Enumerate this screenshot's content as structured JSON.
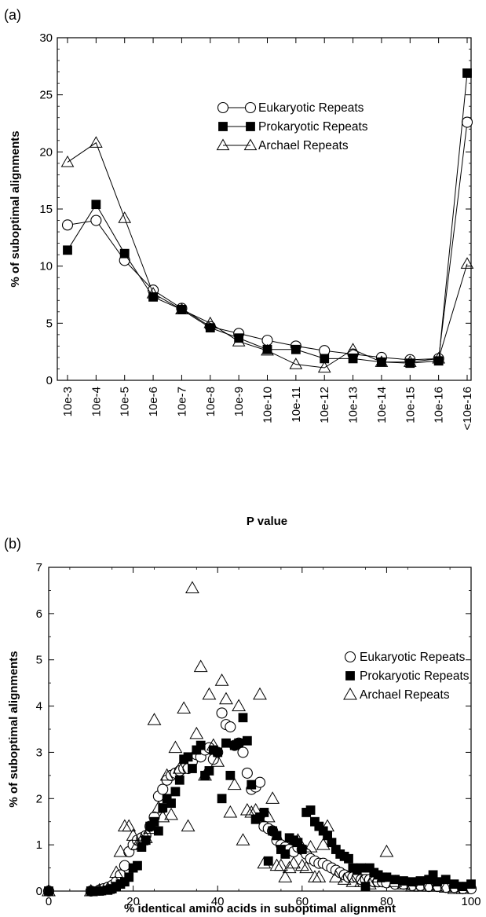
{
  "chart_data": [
    {
      "panel_label": "(a)",
      "type": "line",
      "xlabel": "P value",
      "ylabel": "% of suboptimal alignments",
      "ylim": [
        0,
        30
      ],
      "yticks": [
        0,
        5,
        10,
        15,
        20,
        25,
        30
      ],
      "categories": [
        "10e-3",
        "10e-4",
        "10e-5",
        "10e-6",
        "10e-7",
        "10e-8",
        "10e-9",
        "10e-10",
        "10e-11",
        "10e-12",
        "10e-13",
        "10e-14",
        "10e-15",
        "10e-16",
        "<10e-16"
      ],
      "legend_position": "top-right",
      "series": [
        {
          "name": "Eukaryotic Repeats",
          "marker": "open-circle",
          "color": "#000000",
          "values": [
            13.6,
            14.0,
            10.5,
            7.9,
            6.3,
            4.7,
            4.1,
            3.5,
            3.0,
            2.6,
            2.3,
            2.0,
            1.8,
            1.9,
            22.6
          ]
        },
        {
          "name": "Prokaryotic Repeats",
          "marker": "filled-square",
          "color": "#000000",
          "values": [
            11.4,
            15.4,
            11.1,
            7.3,
            6.2,
            4.6,
            3.7,
            2.7,
            2.7,
            1.9,
            1.9,
            1.6,
            1.5,
            1.7,
            26.9
          ]
        },
        {
          "name": "Archael Repeats",
          "marker": "open-triangle",
          "color": "#000000",
          "values": [
            19.1,
            20.8,
            14.2,
            7.6,
            6.2,
            5.0,
            3.4,
            2.6,
            1.4,
            1.1,
            2.7,
            1.6,
            1.6,
            1.9,
            10.2
          ]
        }
      ]
    },
    {
      "panel_label": "(b)",
      "type": "scatter",
      "xlabel": "% identical amino acids in suboptimal alignment",
      "ylabel": "% of suboptimal alignments",
      "xlim": [
        0,
        100
      ],
      "ylim": [
        0,
        7
      ],
      "xticks": [
        0,
        20,
        40,
        60,
        80,
        100
      ],
      "yticks": [
        0,
        1,
        2,
        3,
        4,
        5,
        6,
        7
      ],
      "legend_position": "top-right",
      "series": [
        {
          "name": "Eukaryotic Repeats",
          "marker": "open-circle",
          "color": "#000000",
          "points": [
            [
              0,
              0
            ],
            [
              10,
              0
            ],
            [
              12,
              0.02
            ],
            [
              13,
              0.05
            ],
            [
              14,
              0.08
            ],
            [
              15,
              0.12
            ],
            [
              16,
              0.2
            ],
            [
              17,
              0.35
            ],
            [
              18,
              0.55
            ],
            [
              19,
              0.85
            ],
            [
              20,
              1.0
            ],
            [
              21,
              1.1
            ],
            [
              22,
              1.15
            ],
            [
              23,
              1.2
            ],
            [
              24,
              1.4
            ],
            [
              25,
              1.6
            ],
            [
              26,
              2.05
            ],
            [
              27,
              2.2
            ],
            [
              28,
              2.4
            ],
            [
              29,
              2.5
            ],
            [
              30,
              2.55
            ],
            [
              31,
              2.6
            ],
            [
              32,
              2.65
            ],
            [
              33,
              2.65
            ],
            [
              34,
              2.8
            ],
            [
              35,
              2.95
            ],
            [
              36,
              2.9
            ],
            [
              37,
              3.05
            ],
            [
              38,
              3.1
            ],
            [
              39,
              2.85
            ],
            [
              40,
              3.0
            ],
            [
              41,
              3.85
            ],
            [
              42,
              3.6
            ],
            [
              43,
              3.55
            ],
            [
              44,
              3.15
            ],
            [
              45,
              3.2
            ],
            [
              46,
              3.0
            ],
            [
              47,
              2.55
            ],
            [
              48,
              2.2
            ],
            [
              49,
              2.25
            ],
            [
              50,
              2.35
            ],
            [
              51,
              1.4
            ],
            [
              52,
              1.35
            ],
            [
              53,
              1.3
            ],
            [
              54,
              1.1
            ],
            [
              55,
              1.0
            ],
            [
              56,
              0.95
            ],
            [
              57,
              0.9
            ],
            [
              58,
              0.85
            ],
            [
              59,
              0.95
            ],
            [
              60,
              0.9
            ],
            [
              61,
              0.8
            ],
            [
              62,
              0.7
            ],
            [
              63,
              0.65
            ],
            [
              64,
              0.6
            ],
            [
              65,
              0.6
            ],
            [
              66,
              0.55
            ],
            [
              67,
              0.5
            ],
            [
              68,
              0.45
            ],
            [
              69,
              0.4
            ],
            [
              70,
              0.35
            ],
            [
              71,
              0.3
            ],
            [
              72,
              0.3
            ],
            [
              73,
              0.3
            ],
            [
              74,
              0.25
            ],
            [
              75,
              0.25
            ],
            [
              76,
              0.25
            ],
            [
              77,
              0.2
            ],
            [
              78,
              0.2
            ],
            [
              79,
              0.2
            ],
            [
              80,
              0.18
            ],
            [
              82,
              0.15
            ],
            [
              84,
              0.15
            ],
            [
              86,
              0.12
            ],
            [
              88,
              0.12
            ],
            [
              90,
              0.1
            ],
            [
              92,
              0.1
            ],
            [
              94,
              0.08
            ],
            [
              96,
              0.08
            ],
            [
              98,
              0.05
            ],
            [
              100,
              0.05
            ]
          ]
        },
        {
          "name": "Prokaryotic Repeats",
          "marker": "filled-square",
          "color": "#000000",
          "points": [
            [
              0,
              0
            ],
            [
              10,
              0
            ],
            [
              12,
              0
            ],
            [
              14,
              0.02
            ],
            [
              15,
              0.05
            ],
            [
              16,
              0.1
            ],
            [
              17,
              0.15
            ],
            [
              18,
              0.2
            ],
            [
              19,
              0.3
            ],
            [
              20,
              0.5
            ],
            [
              21,
              0.55
            ],
            [
              22,
              0.95
            ],
            [
              23,
              1.1
            ],
            [
              24,
              1.4
            ],
            [
              25,
              1.5
            ],
            [
              26,
              1.3
            ],
            [
              27,
              1.8
            ],
            [
              28,
              2.0
            ],
            [
              29,
              1.9
            ],
            [
              30,
              2.15
            ],
            [
              31,
              2.4
            ],
            [
              32,
              2.85
            ],
            [
              33,
              2.9
            ],
            [
              34,
              2.65
            ],
            [
              35,
              3.05
            ],
            [
              36,
              3.15
            ],
            [
              37,
              2.5
            ],
            [
              38,
              2.6
            ],
            [
              39,
              3.05
            ],
            [
              40,
              3.0
            ],
            [
              41,
              2.0
            ],
            [
              42,
              3.2
            ],
            [
              43,
              2.5
            ],
            [
              44,
              3.15
            ],
            [
              45,
              3.2
            ],
            [
              46,
              3.75
            ],
            [
              47,
              3.25
            ],
            [
              48,
              2.3
            ],
            [
              49,
              1.55
            ],
            [
              50,
              1.6
            ],
            [
              51,
              1.7
            ],
            [
              52,
              0.65
            ],
            [
              53,
              1.3
            ],
            [
              54,
              1.2
            ],
            [
              55,
              0.9
            ],
            [
              56,
              0.8
            ],
            [
              57,
              1.15
            ],
            [
              58,
              1.1
            ],
            [
              59,
              1.05
            ],
            [
              60,
              0.9
            ],
            [
              61,
              1.7
            ],
            [
              62,
              1.75
            ],
            [
              63,
              1.5
            ],
            [
              64,
              1.4
            ],
            [
              65,
              1.3
            ],
            [
              66,
              1.2
            ],
            [
              67,
              1.05
            ],
            [
              68,
              0.9
            ],
            [
              69,
              0.8
            ],
            [
              70,
              0.75
            ],
            [
              71,
              0.7
            ],
            [
              72,
              0.5
            ],
            [
              73,
              0.45
            ],
            [
              74,
              0.5
            ],
            [
              75,
              0.1
            ],
            [
              76,
              0.5
            ],
            [
              77,
              0.4
            ],
            [
              78,
              0.35
            ],
            [
              79,
              0.3
            ],
            [
              80,
              0.3
            ],
            [
              82,
              0.25
            ],
            [
              84,
              0.22
            ],
            [
              86,
              0.2
            ],
            [
              88,
              0.22
            ],
            [
              90,
              0.25
            ],
            [
              91,
              0.35
            ],
            [
              92,
              0.2
            ],
            [
              94,
              0.25
            ],
            [
              96,
              0.15
            ],
            [
              98,
              0.1
            ],
            [
              100,
              0.15
            ]
          ]
        },
        {
          "name": "Archael Repeats",
          "marker": "open-triangle",
          "color": "#000000",
          "points": [
            [
              0,
              0
            ],
            [
              10,
              0
            ],
            [
              12,
              0.02
            ],
            [
              14,
              0.05
            ],
            [
              16,
              0.4
            ],
            [
              17,
              0.85
            ],
            [
              18,
              1.4
            ],
            [
              19,
              1.4
            ],
            [
              20,
              1.2
            ],
            [
              21,
              1.0
            ],
            [
              22,
              1.1
            ],
            [
              23,
              1.15
            ],
            [
              24,
              1.35
            ],
            [
              25,
              3.7
            ],
            [
              26,
              1.8
            ],
            [
              27,
              1.6
            ],
            [
              28,
              2.5
            ],
            [
              29,
              1.65
            ],
            [
              30,
              3.1
            ],
            [
              31,
              2.65
            ],
            [
              32,
              3.95
            ],
            [
              33,
              1.4
            ],
            [
              34,
              6.55
            ],
            [
              35,
              3.4
            ],
            [
              36,
              4.85
            ],
            [
              37,
              2.5
            ],
            [
              38,
              4.25
            ],
            [
              39,
              3.15
            ],
            [
              40,
              2.8
            ],
            [
              41,
              4.55
            ],
            [
              42,
              4.15
            ],
            [
              43,
              1.7
            ],
            [
              44,
              2.3
            ],
            [
              45,
              4.0
            ],
            [
              46,
              1.1
            ],
            [
              47,
              1.75
            ],
            [
              48,
              1.7
            ],
            [
              49,
              1.75
            ],
            [
              50,
              4.25
            ],
            [
              51,
              0.6
            ],
            [
              52,
              1.6
            ],
            [
              53,
              2.0
            ],
            [
              54,
              0.55
            ],
            [
              55,
              0.55
            ],
            [
              56,
              0.3
            ],
            [
              57,
              0.5
            ],
            [
              58,
              0.6
            ],
            [
              59,
              1.1
            ],
            [
              60,
              0.55
            ],
            [
              61,
              0.5
            ],
            [
              62,
              0.95
            ],
            [
              63,
              0.3
            ],
            [
              64,
              0.3
            ],
            [
              65,
              1.0
            ],
            [
              66,
              1.4
            ],
            [
              68,
              0.3
            ],
            [
              70,
              0.25
            ],
            [
              72,
              0.2
            ],
            [
              74,
              0.2
            ],
            [
              76,
              0.15
            ],
            [
              78,
              0.3
            ],
            [
              80,
              0.85
            ],
            [
              82,
              0.2
            ],
            [
              84,
              0.15
            ],
            [
              86,
              0.1
            ],
            [
              88,
              0.1
            ],
            [
              90,
              0.1
            ],
            [
              92,
              0.1
            ],
            [
              94,
              0.08
            ],
            [
              96,
              0.05
            ],
            [
              98,
              0.05
            ]
          ]
        }
      ]
    }
  ]
}
